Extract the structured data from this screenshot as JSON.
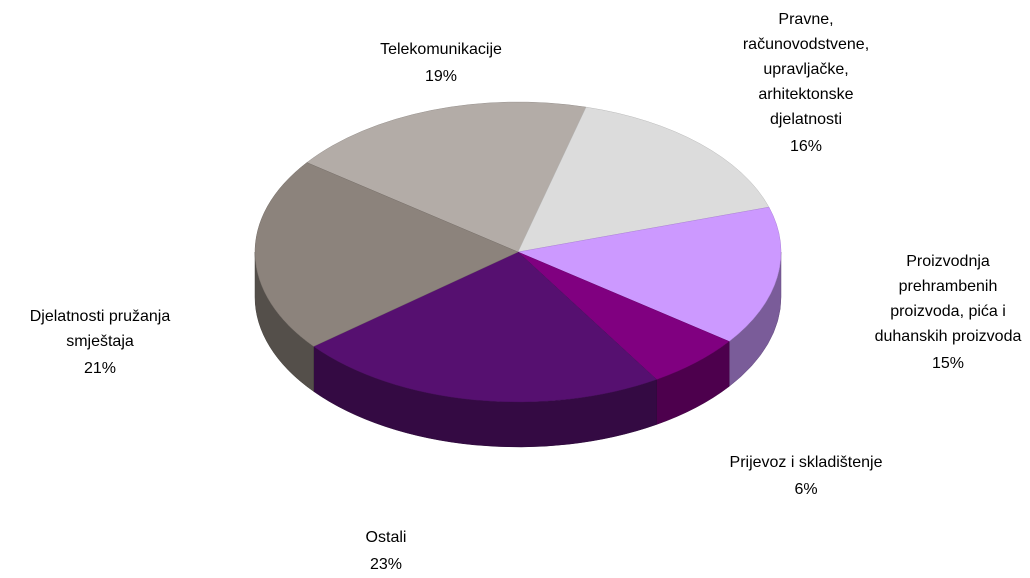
{
  "chart_data": {
    "type": "pie",
    "categories": [
      "Telekomunikacije",
      "Pravne,\nračunovodstvene,\nupravljačke,\narhitektonske\ndjelatnosti",
      "Proizvodnja\nprehrambenih\nproizvoda, pića i\nduhanskih proizvoda",
      "Prijevoz i skladištenje",
      "Ostali",
      "Djelatnosti pružanja\nsmještaja"
    ],
    "values": [
      19,
      16,
      15,
      6,
      23,
      21
    ],
    "value_labels": [
      "19%",
      "16%",
      "15%",
      "6%",
      "23%",
      "21%"
    ],
    "colors": [
      "#b3aca7",
      "#dcdcdc",
      "#cc99ff",
      "#800080",
      "#561070",
      "#8c837c"
    ]
  }
}
